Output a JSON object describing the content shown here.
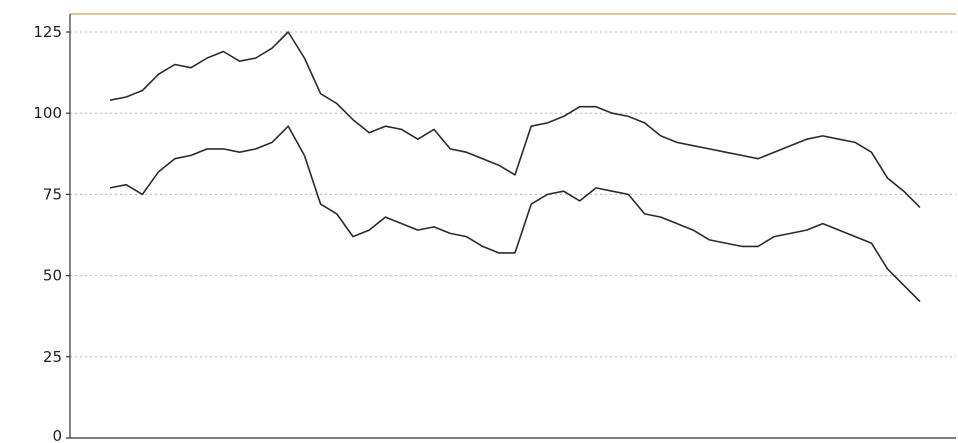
{
  "chart_data": {
    "type": "line",
    "title": "",
    "xlabel": "",
    "ylabel": "",
    "ylim": [
      0,
      125
    ],
    "xlim": [
      0,
      100
    ],
    "yticks": [
      0,
      25,
      50,
      75,
      100,
      125
    ],
    "y_tick_labels": [
      "0",
      "25",
      "50",
      "75",
      "100",
      "125"
    ],
    "grid": true,
    "legend": "none",
    "colors": {
      "line": "#2b2b2b",
      "grid": "#e0a5a5",
      "axis": "#333333"
    },
    "series": [
      {
        "color": "#2b2b2b",
        "x": [
          0,
          2,
          4,
          6,
          8,
          10,
          12,
          14,
          16,
          18,
          20,
          22,
          24,
          26,
          28,
          30,
          32,
          34,
          36,
          38,
          40,
          42,
          44,
          46,
          48,
          50,
          52,
          54,
          56,
          58,
          60,
          62,
          64,
          66,
          68,
          70,
          72,
          74,
          76,
          78,
          80,
          82,
          84,
          86,
          88,
          90,
          92,
          94,
          96,
          98,
          100
        ],
        "y": [
          104,
          105,
          107,
          112,
          115,
          114,
          117,
          119,
          116,
          117,
          120,
          125,
          117,
          106,
          103,
          98,
          94,
          96,
          95,
          92,
          95,
          89,
          88,
          86,
          84,
          81,
          96,
          97,
          99,
          102,
          102,
          100,
          99,
          97,
          93,
          91,
          90,
          89,
          88,
          87,
          86,
          88,
          90,
          92,
          93,
          92,
          91,
          88,
          80,
          76,
          71
        ]
      },
      {
        "color": "#2b2b2b",
        "x": [
          0,
          2,
          4,
          6,
          8,
          10,
          12,
          14,
          16,
          18,
          20,
          22,
          24,
          26,
          28,
          30,
          32,
          34,
          36,
          38,
          40,
          42,
          44,
          46,
          48,
          50,
          52,
          54,
          56,
          58,
          60,
          62,
          64,
          66,
          68,
          70,
          72,
          74,
          76,
          78,
          80,
          82,
          84,
          86,
          88,
          90,
          92,
          94,
          96,
          98,
          100
        ],
        "y": [
          77,
          78,
          75,
          82,
          86,
          87,
          89,
          89,
          88,
          89,
          91,
          96,
          87,
          72,
          69,
          62,
          64,
          68,
          66,
          64,
          65,
          63,
          62,
          59,
          57,
          57,
          72,
          75,
          76,
          73,
          77,
          76,
          75,
          69,
          68,
          66,
          64,
          61,
          60,
          59,
          59,
          62,
          63,
          64,
          66,
          64,
          62,
          60,
          52,
          47,
          42
        ]
      }
    ]
  }
}
